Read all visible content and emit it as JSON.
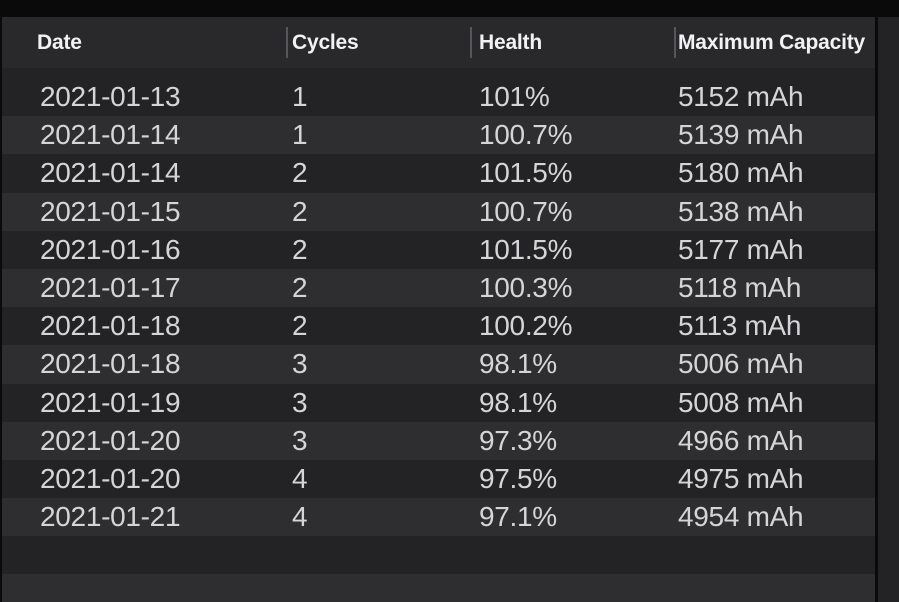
{
  "table": {
    "columns": [
      {
        "label": "Date"
      },
      {
        "label": "Cycles"
      },
      {
        "label": "Health"
      },
      {
        "label": "Maximum Capacity"
      }
    ],
    "rows": [
      {
        "date": "2021-01-13",
        "cycles": "1",
        "health": "101%",
        "capacity": "5152 mAh"
      },
      {
        "date": "2021-01-14",
        "cycles": "1",
        "health": "100.7%",
        "capacity": "5139 mAh"
      },
      {
        "date": "2021-01-14",
        "cycles": "2",
        "health": "101.5%",
        "capacity": "5180 mAh"
      },
      {
        "date": "2021-01-15",
        "cycles": "2",
        "health": "100.7%",
        "capacity": "5138 mAh"
      },
      {
        "date": "2021-01-16",
        "cycles": "2",
        "health": "101.5%",
        "capacity": "5177 mAh"
      },
      {
        "date": "2021-01-17",
        "cycles": "2",
        "health": "100.3%",
        "capacity": "5118 mAh"
      },
      {
        "date": "2021-01-18",
        "cycles": "2",
        "health": "100.2%",
        "capacity": "5113 mAh"
      },
      {
        "date": "2021-01-18",
        "cycles": "3",
        "health": "98.1%",
        "capacity": "5006 mAh"
      },
      {
        "date": "2021-01-19",
        "cycles": "3",
        "health": "98.1%",
        "capacity": "5008 mAh"
      },
      {
        "date": "2021-01-20",
        "cycles": "3",
        "health": "97.3%",
        "capacity": "4966 mAh"
      },
      {
        "date": "2021-01-20",
        "cycles": "4",
        "health": "97.5%",
        "capacity": "4975 mAh"
      },
      {
        "date": "2021-01-21",
        "cycles": "4",
        "health": "97.1%",
        "capacity": "4954 mAh"
      }
    ]
  },
  "colors": {
    "frame_black": "#0a0a0b",
    "header_bg": "#29292c",
    "row_dark": "#232326",
    "row_light": "#2e2e31",
    "header_divider": "#49494c",
    "column_separator": "#57575b",
    "header_text": "#f2f2f4",
    "cell_text": "#d5d5d7"
  }
}
